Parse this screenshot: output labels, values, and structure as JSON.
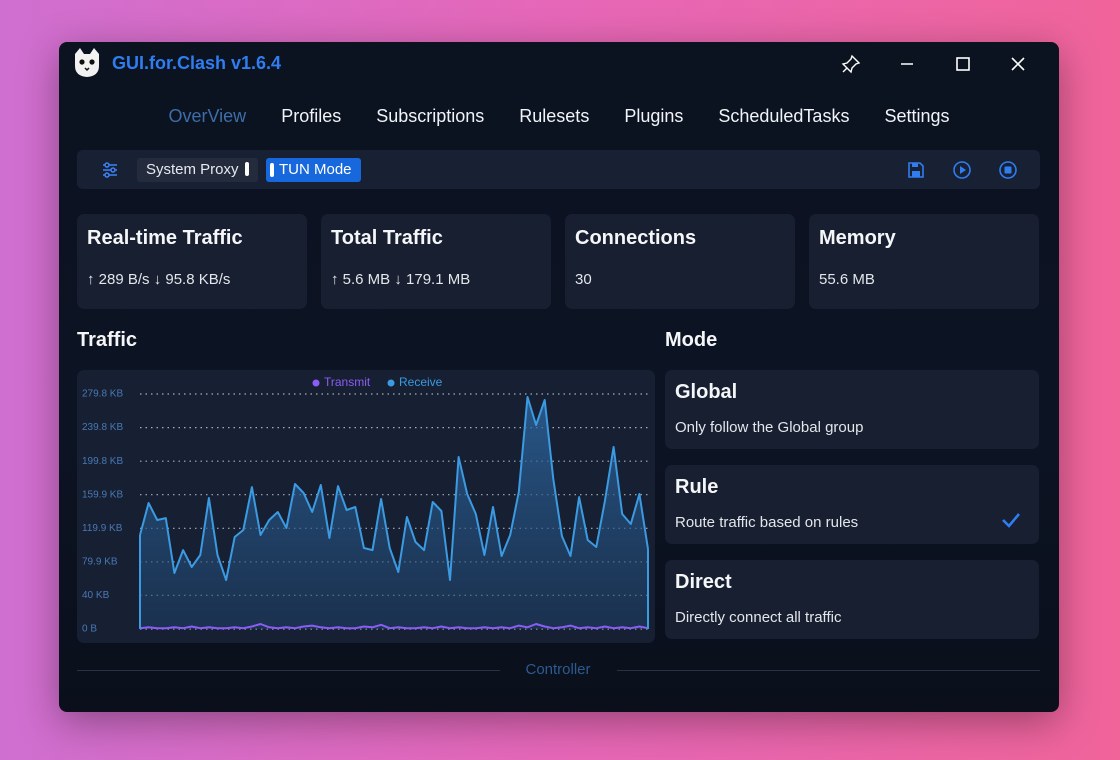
{
  "window": {
    "title": "GUI.for.Clash v1.6.4"
  },
  "nav": [
    {
      "label": "OverView",
      "active": true
    },
    {
      "label": "Profiles",
      "active": false
    },
    {
      "label": "Subscriptions",
      "active": false
    },
    {
      "label": "Rulesets",
      "active": false
    },
    {
      "label": "Plugins",
      "active": false
    },
    {
      "label": "ScheduledTasks",
      "active": false
    },
    {
      "label": "Settings",
      "active": false
    }
  ],
  "toolbar": {
    "system_proxy": "System Proxy",
    "tun_mode": "TUN Mode"
  },
  "cards": [
    {
      "title": "Real-time Traffic",
      "value": "↑ 289 B/s ↓ 95.8 KB/s"
    },
    {
      "title": "Total Traffic",
      "value": "↑ 5.6 MB ↓ 179.1 MB"
    },
    {
      "title": "Connections",
      "value": "30"
    },
    {
      "title": "Memory",
      "value": "55.6 MB"
    }
  ],
  "chart_data": {
    "type": "area",
    "title": "Traffic",
    "ylim": [
      0,
      279.8
    ],
    "yticks": [
      {
        "value": 0,
        "label": "0 B"
      },
      {
        "value": 40,
        "label": "40 KB"
      },
      {
        "value": 79.9,
        "label": "79.9 KB"
      },
      {
        "value": 119.9,
        "label": "119.9 KB"
      },
      {
        "value": 159.9,
        "label": "159.9 KB"
      },
      {
        "value": 199.8,
        "label": "199.8 KB"
      },
      {
        "value": 239.8,
        "label": "239.8 KB"
      },
      {
        "value": 279.8,
        "label": "279.8 KB"
      }
    ],
    "grid": true,
    "series": [
      {
        "name": "Transmit",
        "color": "#8b5cf6",
        "values": [
          1,
          2,
          1,
          1,
          2,
          1,
          3,
          1,
          2,
          1,
          1,
          2,
          1,
          3,
          6,
          2,
          1,
          2,
          1,
          3,
          4,
          2,
          1,
          2,
          1,
          1,
          3,
          2,
          5,
          1,
          2,
          1,
          1,
          2,
          1,
          3,
          1,
          2,
          1,
          1,
          2,
          1,
          2,
          1,
          4,
          2,
          6,
          3,
          1,
          2,
          4,
          1,
          2,
          1,
          3,
          1,
          2,
          1,
          3,
          1
        ]
      },
      {
        "name": "Receive",
        "color": "#3b9ae1",
        "values": [
          111.9,
          150,
          129.8,
          132.1,
          66.7,
          94,
          73.8,
          88.1,
          156,
          88.1,
          58.3,
          109.5,
          117.9,
          169,
          111.9,
          129.8,
          139.3,
          120.2,
          172.6,
          161.9,
          139.3,
          171.4,
          108.3,
          170.2,
          141.7,
          145.2,
          96.4,
          94,
          154.8,
          96.4,
          67.9,
          133.3,
          103.6,
          94,
          151.2,
          140.5,
          58.3,
          204.8,
          160.7,
          136.9,
          88.1,
          145.2,
          86.9,
          111.9,
          163.1,
          276.2,
          242.9,
          272.6,
          178.6,
          110.7,
          86.9,
          157.1,
          106,
          97.6,
          152.4,
          216.7,
          136.9,
          125,
          160.7,
          95.2
        ]
      }
    ]
  },
  "mode": {
    "title": "Mode",
    "options": [
      {
        "name": "Global",
        "description": "Only follow the Global group",
        "selected": false
      },
      {
        "name": "Rule",
        "description": "Route traffic based on rules",
        "selected": true
      },
      {
        "name": "Direct",
        "description": "Directly connect all traffic",
        "selected": false
      }
    ]
  },
  "footer": {
    "label": "Controller"
  }
}
